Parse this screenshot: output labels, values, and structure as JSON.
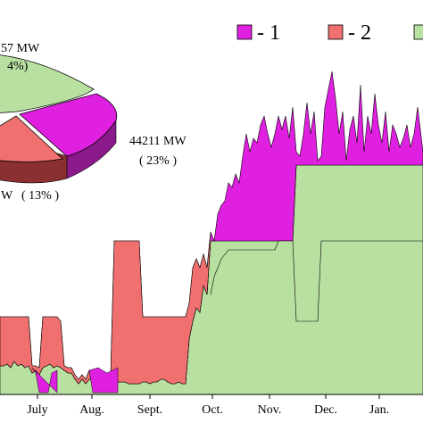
{
  "colors": {
    "series1": "#e020e0",
    "series2": "#f07070",
    "series3": "#b8e0a0",
    "outline": "#000000",
    "pie_side1": "#8a1a8a",
    "pie_side2": "#8a3030",
    "pie_side3": "#6e8a5a"
  },
  "chart_data": [
    {
      "type": "area",
      "stacked": true,
      "title": "",
      "xlabel": "",
      "ylabel": "",
      "x_ticks": [
        "July",
        "Aug.",
        "Sept.",
        "Oct.",
        "Nov.",
        "Dec.",
        "Jan."
      ],
      "legend": {
        "placement": "top-right",
        "entries": [
          "- 1",
          "- 2",
          ""
        ]
      },
      "series": [
        {
          "name": "1",
          "color_key": "series1",
          "description": "top band: difference between cumulative (1+2+3) and (2+3)",
          "x": [
            0,
            4,
            8,
            12,
            16,
            20,
            24,
            28,
            32,
            36,
            40,
            44,
            48,
            52,
            56,
            60,
            64,
            68,
            72,
            76,
            80,
            84,
            88,
            92,
            96,
            100,
            104,
            108,
            112,
            116,
            120,
            124,
            128,
            132,
            136,
            140,
            144,
            148,
            152,
            156,
            160,
            164,
            168,
            172,
            176,
            180,
            184,
            188,
            192,
            196,
            200,
            204,
            208,
            212,
            216,
            220,
            224,
            228,
            232,
            236,
            240,
            244,
            248,
            252,
            256,
            260,
            264,
            268,
            272,
            276,
            280,
            284,
            288,
            292,
            296,
            300,
            304,
            308,
            312,
            316,
            320,
            324,
            328,
            332,
            336,
            340,
            344,
            348,
            352,
            356,
            360,
            364,
            368,
            372,
            376,
            380,
            384,
            388,
            392,
            396,
            400,
            404,
            408,
            412,
            416,
            420,
            424,
            428,
            432,
            436,
            440,
            444,
            448,
            452,
            456,
            460,
            464,
            468,
            474
          ],
          "top": [
            355,
            355,
            355,
            355,
            355,
            355,
            355,
            355,
            355,
            410,
            410,
            412,
            355,
            355,
            355,
            355,
            355,
            360,
            410,
            412,
            412,
            420,
            425,
            420,
            425,
            415,
            415,
            420,
            420,
            420,
            420,
            420,
            270,
            270,
            270,
            270,
            270,
            270,
            270,
            270,
            355,
            355,
            355,
            355,
            355,
            355,
            355,
            355,
            355,
            355,
            355,
            355,
            355,
            340,
            300,
            290,
            300,
            285,
            300,
            260,
            270,
            240,
            230,
            225,
            205,
            210,
            195,
            205,
            175,
            150,
            170,
            155,
            160,
            140,
            130,
            150,
            165,
            150,
            130,
            145,
            130,
            155,
            120,
            170,
            175,
            150,
            115,
            150,
            125,
            180,
            175,
            120,
            100,
            80,
            110,
            150,
            125,
            180,
            145,
            130,
            160,
            95,
            170,
            130,
            150,
            105,
            140,
            160,
            125,
            170,
            140,
            150,
            165,
            155,
            140,
            165,
            150,
            120,
            170
          ],
          "bottom": [
            440,
            440,
            440,
            440,
            440,
            440,
            440,
            440,
            440,
            440,
            440,
            440,
            440,
            440,
            440,
            440,
            440,
            440,
            440,
            440,
            440,
            440,
            440,
            440,
            440,
            440,
            440,
            440,
            440,
            440,
            440,
            440,
            440,
            440,
            440,
            440,
            440,
            440,
            440,
            440,
            440,
            440,
            440,
            440,
            440,
            440,
            440,
            440,
            440,
            440,
            440,
            440,
            440,
            440,
            440,
            440,
            440,
            440,
            440,
            440,
            440,
            440,
            440,
            440,
            440,
            440,
            440,
            440,
            440,
            440,
            440,
            440,
            440,
            440,
            440,
            440,
            440,
            440,
            440,
            440,
            440,
            440,
            440,
            440,
            440,
            440,
            440,
            440,
            440,
            440,
            440,
            440,
            440,
            440,
            440,
            440,
            440,
            440,
            440,
            440,
            440,
            440,
            440,
            440,
            440,
            440,
            440,
            440,
            440,
            440,
            440,
            440,
            440,
            440,
            440,
            440,
            440,
            440,
            440
          ]
        }
      ],
      "series_levels": {
        "x": [
          0,
          4,
          8,
          12,
          16,
          20,
          24,
          28,
          32,
          36,
          40,
          44,
          48,
          52,
          56,
          60,
          64,
          68,
          72,
          76,
          80,
          84,
          88,
          92,
          96,
          100,
          104,
          108,
          112,
          116,
          120,
          124,
          128,
          132,
          136,
          140,
          144,
          148,
          152,
          156,
          160,
          164,
          168,
          172,
          176,
          180,
          184,
          188,
          192,
          196,
          200,
          204,
          208,
          212,
          216,
          220,
          224,
          228,
          232,
          236,
          240,
          244,
          248,
          252,
          256,
          260,
          264,
          268,
          272,
          276,
          280,
          284,
          288,
          292,
          296,
          300,
          304,
          308,
          312,
          316,
          320,
          324,
          328,
          332,
          336,
          340,
          344,
          348,
          352,
          356,
          360,
          364,
          368,
          372,
          376,
          380,
          384,
          388,
          392,
          396,
          400,
          404,
          408,
          412,
          416,
          420,
          424,
          428,
          432,
          436,
          440,
          444,
          448,
          452,
          456,
          460,
          464,
          468,
          474
        ],
        "level1": [
          355,
          355,
          355,
          355,
          355,
          355,
          355,
          355,
          355,
          410,
          410,
          412,
          355,
          355,
          355,
          355,
          355,
          360,
          410,
          412,
          412,
          420,
          425,
          420,
          425,
          415,
          415,
          420,
          420,
          420,
          420,
          420,
          270,
          270,
          270,
          270,
          270,
          270,
          270,
          270,
          355,
          355,
          355,
          355,
          355,
          355,
          355,
          355,
          355,
          355,
          355,
          355,
          355,
          340,
          300,
          290,
          300,
          285,
          300,
          260,
          270,
          240,
          230,
          225,
          205,
          210,
          195,
          205,
          175,
          150,
          170,
          155,
          160,
          140,
          130,
          150,
          165,
          150,
          130,
          145,
          130,
          155,
          120,
          170,
          175,
          150,
          115,
          150,
          125,
          180,
          175,
          120,
          100,
          80,
          110,
          150,
          125,
          180,
          145,
          130,
          160,
          95,
          170,
          130,
          150,
          105,
          140,
          160,
          125,
          170,
          140,
          150,
          165,
          155,
          140,
          165,
          150,
          120,
          170
        ],
        "level2": [
          410,
          410,
          408,
          412,
          405,
          410,
          408,
          412,
          410,
          418,
          415,
          420,
          412,
          410,
          408,
          412,
          410,
          412,
          415,
          418,
          418,
          425,
          430,
          425,
          430,
          425,
          425,
          428,
          425,
          425,
          428,
          428,
          428,
          428,
          428,
          428,
          430,
          430,
          430,
          430,
          428,
          428,
          430,
          428,
          428,
          425,
          425,
          428,
          430,
          430,
          428,
          430,
          430,
          380,
          360,
          345,
          350,
          320,
          330,
          270,
          270,
          270,
          270,
          270,
          270,
          270,
          270,
          270,
          270,
          270,
          270,
          270,
          270,
          270,
          270,
          270,
          270,
          270,
          270,
          270,
          270,
          270,
          270,
          185,
          185,
          185,
          185,
          185,
          185,
          185,
          185,
          185,
          185,
          185,
          185,
          185,
          185,
          185,
          185,
          185,
          185,
          185,
          185,
          185,
          185,
          185,
          185,
          185,
          185,
          185,
          185,
          185,
          185,
          185,
          185,
          185,
          185,
          185,
          185
        ],
        "level3": [
          410,
          410,
          408,
          412,
          405,
          410,
          408,
          412,
          410,
          418,
          420,
          422,
          418,
          415,
          420,
          422,
          418,
          420,
          422,
          425,
          425,
          440,
          440,
          440,
          440,
          440,
          430,
          428,
          430,
          432,
          430,
          432,
          432,
          432,
          432,
          432,
          432,
          432,
          432,
          432,
          432,
          430,
          432,
          430,
          432,
          430,
          428,
          430,
          432,
          432,
          430,
          432,
          432,
          405,
          395,
          385,
          380,
          350,
          350,
          330,
          310,
          300,
          290,
          285,
          280,
          280,
          280,
          280,
          280,
          280,
          280,
          280,
          280,
          280,
          280,
          280,
          280,
          280,
          270,
          270,
          270,
          270,
          270,
          360,
          360,
          360,
          360,
          360,
          360,
          360,
          270,
          270,
          270,
          270,
          270,
          270,
          270,
          270,
          270,
          270,
          270,
          270,
          270,
          270,
          270,
          270,
          270,
          270,
          270,
          270,
          270,
          270,
          270,
          270,
          270,
          270,
          270,
          270,
          270
        ]
      }
    },
    {
      "type": "pie",
      "slices": [
        {
          "label_line1": "57 MW",
          "label_line2": "4%)",
          "color_key": "series3"
        },
        {
          "label_line1": "44211 MW",
          "label_line2": "( 23% )",
          "color_key": "series1"
        },
        {
          "label_line1": "W",
          "label_line2": "( 13% )",
          "color_key": "series2"
        }
      ]
    }
  ]
}
